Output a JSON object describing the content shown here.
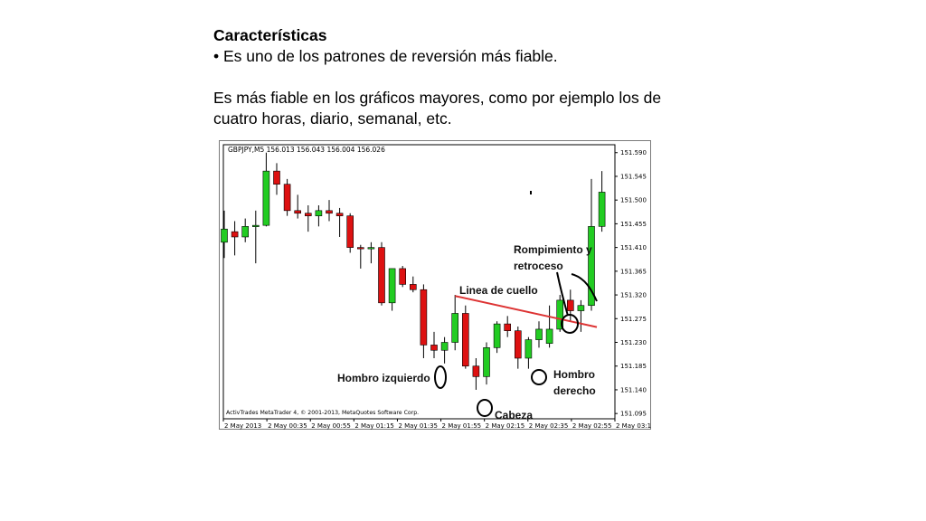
{
  "slide": {
    "heading": "Características",
    "bullet": "• Es uno de los patrones de reversión más fiable.",
    "paragraph_line1": "Es más fiable en los gráficos mayores, como por ejemplo los de",
    "paragraph_line2": "cuatro horas, diario, semanal, etc."
  },
  "chart_data": {
    "type": "candlestick",
    "symbol_header": "GBPJPY,M5 156.013 156.043 156.004 156.026",
    "copyright": "ActivTrades MetaTrader 4, © 2001-2013, MetaQuotes Software Corp.",
    "price_ticks": [
      "151.590",
      "151.545",
      "151.500",
      "151.455",
      "151.410",
      "151.365",
      "151.320",
      "151.275",
      "151.230",
      "151.185",
      "151.140",
      "151.095"
    ],
    "time_ticks": [
      "2 May 2013",
      "2 May 00:35",
      "2 May 00:55",
      "2 May 01:15",
      "2 May 01:35",
      "2 May 01:55",
      "2 May 02:15",
      "2 May 02:35",
      "2 May 02:55",
      "2 May 03:1"
    ],
    "ylim": [
      151.085,
      151.605
    ],
    "colors": {
      "bull": "#22cc22",
      "bear": "#dd1111",
      "neckline": "#dd3333"
    },
    "candles": [
      {
        "o": 151.42,
        "h": 151.48,
        "l": 151.39,
        "c": 151.445
      },
      {
        "o": 151.44,
        "h": 151.46,
        "l": 151.395,
        "c": 151.43
      },
      {
        "o": 151.43,
        "h": 151.465,
        "l": 151.42,
        "c": 151.45
      },
      {
        "o": 151.45,
        "h": 151.48,
        "l": 151.38,
        "c": 151.452
      },
      {
        "o": 151.452,
        "h": 151.59,
        "l": 151.45,
        "c": 151.555
      },
      {
        "o": 151.555,
        "h": 151.57,
        "l": 151.51,
        "c": 151.53
      },
      {
        "o": 151.53,
        "h": 151.54,
        "l": 151.47,
        "c": 151.48
      },
      {
        "o": 151.48,
        "h": 151.51,
        "l": 151.465,
        "c": 151.475
      },
      {
        "o": 151.475,
        "h": 151.49,
        "l": 151.44,
        "c": 151.47
      },
      {
        "o": 151.47,
        "h": 151.49,
        "l": 151.45,
        "c": 151.48
      },
      {
        "o": 151.48,
        "h": 151.5,
        "l": 151.46,
        "c": 151.475
      },
      {
        "o": 151.475,
        "h": 151.485,
        "l": 151.43,
        "c": 151.47
      },
      {
        "o": 151.47,
        "h": 151.475,
        "l": 151.4,
        "c": 151.41
      },
      {
        "o": 151.41,
        "h": 151.415,
        "l": 151.37,
        "c": 151.408
      },
      {
        "o": 151.408,
        "h": 151.42,
        "l": 151.38,
        "c": 151.41
      },
      {
        "o": 151.41,
        "h": 151.42,
        "l": 151.3,
        "c": 151.305
      },
      {
        "o": 151.305,
        "h": 151.37,
        "l": 151.29,
        "c": 151.37
      },
      {
        "o": 151.37,
        "h": 151.375,
        "l": 151.335,
        "c": 151.34
      },
      {
        "o": 151.34,
        "h": 151.355,
        "l": 151.325,
        "c": 151.33
      },
      {
        "o": 151.33,
        "h": 151.34,
        "l": 151.2,
        "c": 151.225
      },
      {
        "o": 151.225,
        "h": 151.25,
        "l": 151.2,
        "c": 151.215
      },
      {
        "o": 151.215,
        "h": 151.24,
        "l": 151.19,
        "c": 151.23
      },
      {
        "o": 151.23,
        "h": 151.32,
        "l": 151.215,
        "c": 151.285
      },
      {
        "o": 151.285,
        "h": 151.3,
        "l": 151.18,
        "c": 151.185
      },
      {
        "o": 151.185,
        "h": 151.2,
        "l": 151.14,
        "c": 151.165
      },
      {
        "o": 151.165,
        "h": 151.23,
        "l": 151.15,
        "c": 151.22
      },
      {
        "o": 151.22,
        "h": 151.27,
        "l": 151.21,
        "c": 151.265
      },
      {
        "o": 151.265,
        "h": 151.28,
        "l": 151.24,
        "c": 151.252
      },
      {
        "o": 151.252,
        "h": 151.26,
        "l": 151.18,
        "c": 151.2
      },
      {
        "o": 151.2,
        "h": 151.24,
        "l": 151.18,
        "c": 151.235
      },
      {
        "o": 151.235,
        "h": 151.27,
        "l": 151.22,
        "c": 151.255
      },
      {
        "o": 151.228,
        "h": 151.3,
        "l": 151.22,
        "c": 151.255
      },
      {
        "o": 151.255,
        "h": 151.32,
        "l": 151.25,
        "c": 151.31
      },
      {
        "o": 151.31,
        "h": 151.33,
        "l": 151.27,
        "c": 151.29
      },
      {
        "o": 151.29,
        "h": 151.31,
        "l": 151.25,
        "c": 151.3
      },
      {
        "o": 151.3,
        "h": 151.54,
        "l": 151.29,
        "c": 151.45
      },
      {
        "o": 151.45,
        "h": 151.555,
        "l": 151.44,
        "c": 151.515
      }
    ],
    "neckline": {
      "from_index": 22,
      "from_price": 151.318,
      "to_index": 35,
      "to_price": 151.259
    },
    "annotations": [
      {
        "label": "Hombro izquierdo",
        "index": 21
      },
      {
        "label": "Cabeza",
        "index": 24
      },
      {
        "label": "Hombro derecho",
        "index": 29
      },
      {
        "label": "Linea de cuello"
      },
      {
        "label_line1": "Rompimiento y",
        "label_line2": "retroceso",
        "index": 31
      }
    ]
  }
}
